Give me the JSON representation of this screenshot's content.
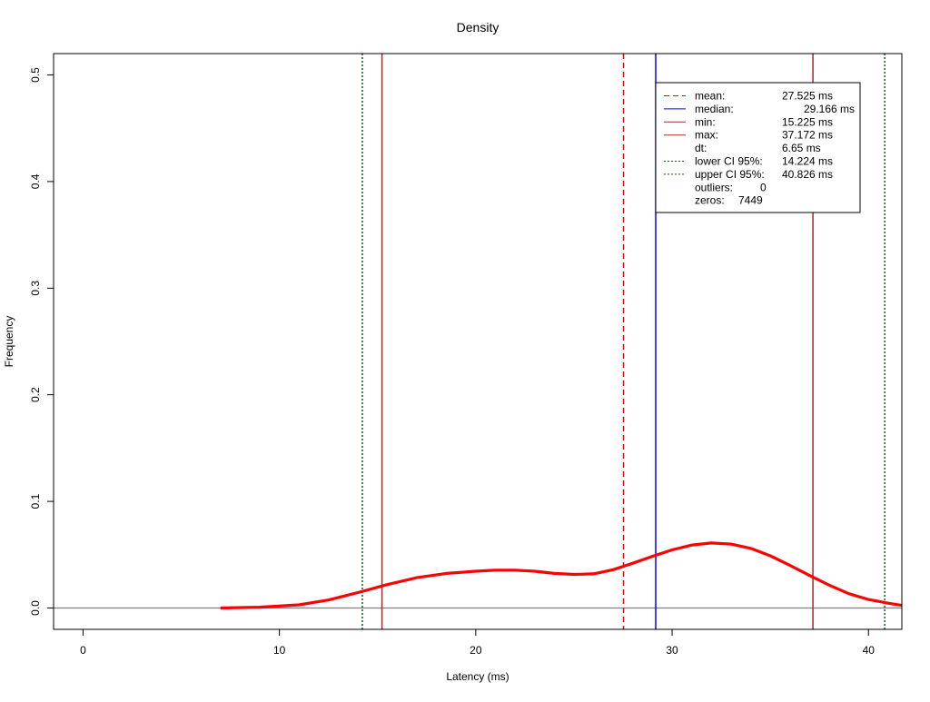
{
  "chart_data": {
    "type": "line",
    "title": "Density",
    "xlabel": "Latency (ms)",
    "ylabel": "Frequency",
    "xlim": [
      -1.5,
      41.7
    ],
    "ylim": [
      -0.02,
      0.52
    ],
    "xticks": [
      0,
      10,
      20,
      30,
      40
    ],
    "yticks": [
      0.0,
      0.1,
      0.2,
      0.3,
      0.4,
      0.5
    ],
    "grid": false,
    "legend_position": "top-right",
    "density": {
      "color": "#ff0000",
      "x": [
        7,
        9,
        11,
        12.5,
        14,
        15.5,
        17,
        18.5,
        20,
        21,
        22,
        23,
        24,
        25,
        26,
        27,
        28,
        29,
        30,
        31,
        32,
        33,
        34,
        35,
        36,
        37,
        38,
        39,
        40,
        41,
        41.7
      ],
      "y": [
        0.0,
        0.0008,
        0.003,
        0.0075,
        0.0145,
        0.022,
        0.0285,
        0.0325,
        0.0345,
        0.0355,
        0.0355,
        0.0345,
        0.0325,
        0.0315,
        0.032,
        0.036,
        0.042,
        0.0485,
        0.0545,
        0.059,
        0.061,
        0.06,
        0.056,
        0.049,
        0.04,
        0.0305,
        0.0215,
        0.0135,
        0.008,
        0.0045,
        0.0025
      ]
    },
    "baseline": {
      "y": 0,
      "color": "#808080"
    },
    "vlines": [
      {
        "name": "lower CI 95%",
        "x": 14.224,
        "color": "#006400",
        "dash": "dotted"
      },
      {
        "name": "min",
        "x": 15.225,
        "color": "#a52a2a",
        "dash": "solid"
      },
      {
        "name": "mean",
        "x": 27.525,
        "color": "#ff0000",
        "dash": "dashed"
      },
      {
        "name": "median",
        "x": 29.166,
        "color": "#0000ff",
        "dash": "solid"
      },
      {
        "name": "max",
        "x": 37.172,
        "color": "#a52a2a",
        "dash": "solid"
      },
      {
        "name": "upper CI 95%",
        "x": 40.826,
        "color": "#006400",
        "dash": "dotted"
      }
    ],
    "legend": [
      {
        "label": "mean:",
        "value": "27.525 ms",
        "color": "#ff0000",
        "dash": "dashed"
      },
      {
        "label": "median:",
        "value": "29.166 ms",
        "color": "#0000ff",
        "dash": "solid",
        "indent": true
      },
      {
        "label": "min:",
        "value": "15.225 ms",
        "color": "#a52a2a",
        "dash": "solid"
      },
      {
        "label": "max:",
        "value": "37.172 ms",
        "color": "#a52a2a",
        "dash": "solid"
      },
      {
        "label": "dt:",
        "value": "6.65 ms",
        "color": "",
        "dash": "none"
      },
      {
        "label": "lower CI 95%:",
        "value": "14.224 ms",
        "color": "#006400",
        "dash": "dotted"
      },
      {
        "label": "upper CI 95%:",
        "value": "40.826 ms",
        "color": "#006400",
        "dash": "dotted"
      },
      {
        "label": "outliers:",
        "value": "0",
        "color": "",
        "dash": "none",
        "inline": true
      },
      {
        "label": "zeros:",
        "value": "7449",
        "color": "",
        "dash": "none",
        "inline": true
      }
    ]
  }
}
